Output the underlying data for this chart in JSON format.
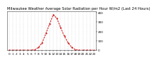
{
  "title": "Milwaukee Weather Average Solar Radiation per Hour W/m2 (Last 24 Hours)",
  "hours": [
    0,
    1,
    2,
    3,
    4,
    5,
    6,
    7,
    8,
    9,
    10,
    11,
    12,
    13,
    14,
    15,
    16,
    17,
    18,
    19,
    20,
    21,
    22,
    23
  ],
  "values": [
    0,
    0,
    0,
    0,
    0,
    0,
    0,
    5,
    30,
    80,
    180,
    280,
    380,
    340,
    240,
    150,
    80,
    30,
    5,
    0,
    0,
    0,
    0,
    0
  ],
  "line_color": "#cc0000",
  "bg_color": "#ffffff",
  "grid_color": "#888888",
  "ylim": [
    0,
    420
  ],
  "xlim": [
    -0.5,
    23.5
  ],
  "title_fontsize": 3.8,
  "tick_fontsize": 3.0,
  "yticks": [
    0,
    100,
    200,
    300,
    400
  ]
}
